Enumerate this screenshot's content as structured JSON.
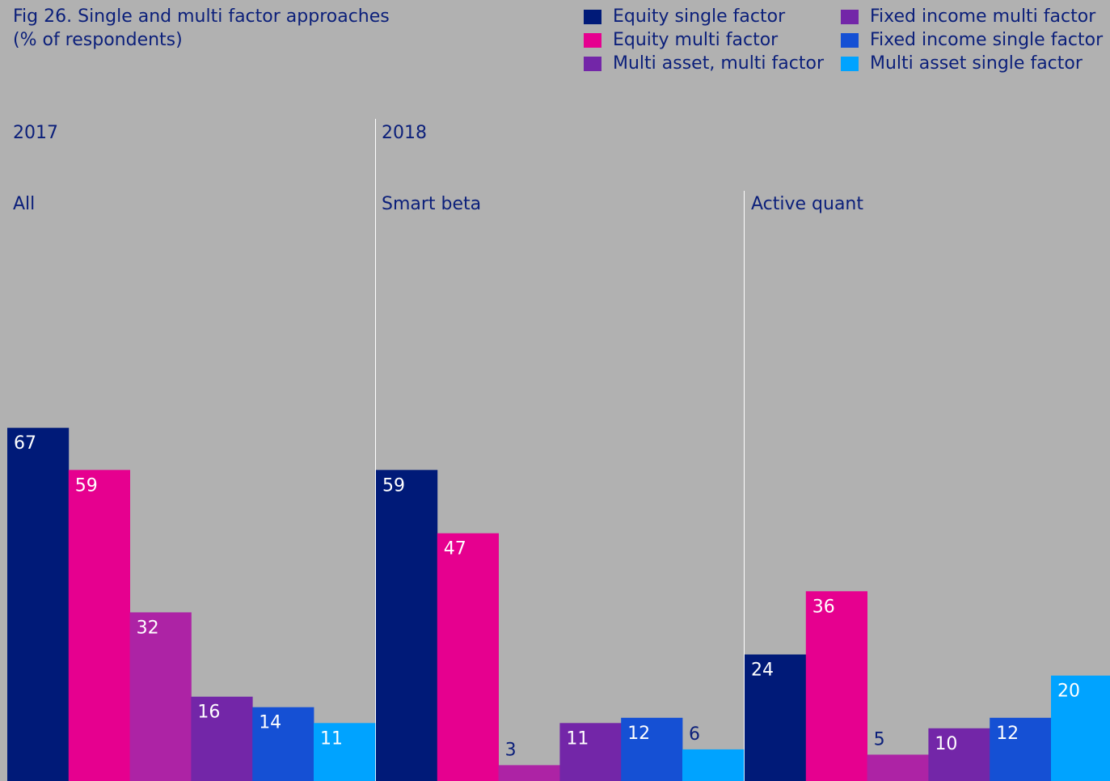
{
  "title": {
    "line1": "Fig 26. Single and multi factor approaches",
    "line2": "(%  of respondents)"
  },
  "legend": [
    {
      "name": "Equity single factor",
      "color": "#001a78"
    },
    {
      "name": "Equity multi factor",
      "color": "#e6008f"
    },
    {
      "name": "Multi asset, multi factor",
      "color": "#7326a8"
    },
    {
      "name": "Fixed income multi factor",
      "color": "#7326a8"
    },
    {
      "name": "Fixed income single factor",
      "color": "#1550d4"
    },
    {
      "name": "Multi asset single factor",
      "color": "#00a3ff"
    }
  ],
  "chart_data": {
    "type": "bar",
    "series_order": [
      "Equity single factor",
      "Equity multi factor",
      "Multi asset, multi factor",
      "Fixed income multi factor",
      "Fixed income single factor",
      "Multi asset single factor"
    ],
    "bar_colors": [
      "#001a78",
      "#e6008f",
      "#ad23a5",
      "#7326a8",
      "#1550d4",
      "#00a3ff"
    ],
    "ylim": [
      0,
      100
    ],
    "groups": [
      {
        "year": "2017",
        "label": "All",
        "values": [
          67,
          59,
          32,
          16,
          14,
          11
        ]
      },
      {
        "year": "2018",
        "label": "Smart beta",
        "values": [
          59,
          47,
          3,
          11,
          12,
          6
        ]
      },
      {
        "year": "",
        "label": "Active quant",
        "values": [
          24,
          36,
          5,
          10,
          12,
          20
        ]
      }
    ]
  }
}
